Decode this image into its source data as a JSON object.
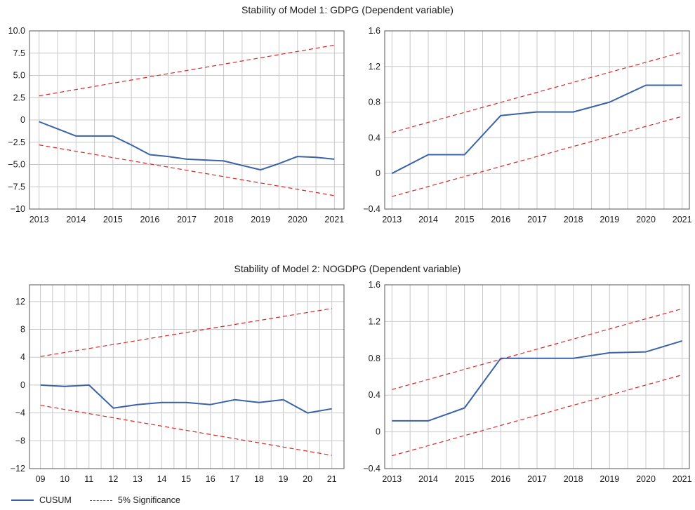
{
  "titles": {
    "model1": "Stability of Model 1: GDPG (Dependent variable)",
    "model2": "Stability of Model 2: NOGDPG (Dependent variable)"
  },
  "legend": {
    "cusum": "CUSUM",
    "significance": "5% Significance"
  },
  "colors": {
    "cusum": "#3a62a8",
    "significance": "#d62828",
    "grid": "#c8c8c8",
    "frame": "#555555"
  },
  "chart_data": [
    {
      "type": "line",
      "chart_id": "model1-cusum",
      "xlim": [
        2012.74,
        2021.26
      ],
      "xticks": [
        2013,
        2014,
        2015,
        2016,
        2017,
        2018,
        2019,
        2020,
        2021
      ],
      "xticklabels": [
        "2013",
        "2014",
        "2015",
        "2016",
        "2017",
        "2018",
        "2019",
        "2020",
        "2021"
      ],
      "ylim": [
        -10,
        10
      ],
      "yticks": [
        -10,
        -7.5,
        -5,
        -2.5,
        0,
        2.5,
        5,
        7.5,
        10
      ],
      "yticklabels": [
        "−10",
        "−7.5",
        "−5.0",
        "−2.5",
        "0",
        "2.5",
        "5.0",
        "7.5",
        "10.0"
      ],
      "grid": true,
      "series": [
        {
          "name": "CUSUM",
          "style": "solid",
          "x": [
            2013.0,
            2013.5,
            2014.0,
            2014.5,
            2015.0,
            2015.5,
            2016.0,
            2016.5,
            2017.0,
            2017.5,
            2018.0,
            2018.5,
            2019.0,
            2019.5,
            2020.0,
            2020.5,
            2021.0
          ],
          "y": [
            -0.2,
            -1.0,
            -1.8,
            -1.8,
            -1.8,
            -2.8,
            -3.9,
            -4.1,
            -4.4,
            -4.5,
            -4.6,
            -5.1,
            -5.6,
            -4.9,
            -4.1,
            -4.2,
            -4.4
          ]
        },
        {
          "name": "5% Significance",
          "style": "dashed",
          "x": [
            2013.0,
            2021.0
          ],
          "y": [
            2.7,
            8.4
          ]
        },
        {
          "name": "5% Significance",
          "style": "dashed",
          "x": [
            2013.0,
            2021.0
          ],
          "y": [
            -2.8,
            -8.5
          ]
        }
      ]
    },
    {
      "type": "line",
      "chart_id": "model1-cusumsq",
      "xlim": [
        2012.8,
        2021.2
      ],
      "xticks": [
        2013,
        2014,
        2015,
        2016,
        2017,
        2018,
        2019,
        2020,
        2021
      ],
      "xticklabels": [
        "2013",
        "2014",
        "2015",
        "2016",
        "2017",
        "2018",
        "2019",
        "2020",
        "2021"
      ],
      "ylim": [
        -0.4,
        1.6
      ],
      "yticks": [
        -0.4,
        0,
        0.4,
        0.8,
        1.2,
        1.6
      ],
      "yticklabels": [
        "−0.4",
        "0",
        "0.4",
        "0.8",
        "1.2",
        "1.6"
      ],
      "grid": true,
      "series": [
        {
          "name": "CUSUM",
          "style": "solid",
          "x": [
            2013.0,
            2014.0,
            2015.0,
            2016.0,
            2017.0,
            2018.0,
            2019.0,
            2020.0,
            2020.4,
            2021.0
          ],
          "y": [
            0.0,
            0.21,
            0.21,
            0.65,
            0.69,
            0.69,
            0.8,
            0.99,
            0.99,
            0.99
          ]
        },
        {
          "name": "5% Significance",
          "style": "dashed",
          "x": [
            2013.0,
            2021.0
          ],
          "y": [
            0.46,
            1.36
          ]
        },
        {
          "name": "5% Significance",
          "style": "dashed",
          "x": [
            2013.0,
            2021.0
          ],
          "y": [
            -0.26,
            0.64
          ]
        }
      ]
    },
    {
      "type": "line",
      "chart_id": "model2-cusum",
      "xlim": [
        8.55,
        21.5
      ],
      "xticks": [
        9,
        10,
        11,
        12,
        13,
        14,
        15,
        16,
        17,
        18,
        19,
        20,
        21
      ],
      "xticklabels": [
        "09",
        "10",
        "11",
        "12",
        "13",
        "14",
        "15",
        "16",
        "17",
        "18",
        "19",
        "20",
        "21"
      ],
      "ylim": [
        -12,
        14.4
      ],
      "yticks": [
        -12,
        -8,
        -4,
        0,
        4,
        8,
        12
      ],
      "yticklabels": [
        "−12",
        "−8",
        "−4",
        "0",
        "4",
        "8",
        "12"
      ],
      "grid": true,
      "series": [
        {
          "name": "CUSUM",
          "style": "solid",
          "x": [
            9,
            10,
            11,
            12,
            13,
            14,
            15,
            16,
            17,
            18,
            19,
            20,
            21
          ],
          "y": [
            0.0,
            -0.2,
            0.0,
            -3.3,
            -2.8,
            -2.5,
            -2.5,
            -2.8,
            -2.1,
            -2.5,
            -2.1,
            -4.0,
            -3.4
          ]
        },
        {
          "name": "5% Significance",
          "style": "dashed",
          "x": [
            9,
            21
          ],
          "y": [
            4.1,
            11.0
          ]
        },
        {
          "name": "5% Significance",
          "style": "dashed",
          "x": [
            9,
            21
          ],
          "y": [
            -2.9,
            -10.1
          ]
        }
      ]
    },
    {
      "type": "line",
      "chart_id": "model2-cusumsq",
      "xlim": [
        2012.8,
        2021.2
      ],
      "xticks": [
        2013,
        2014,
        2015,
        2016,
        2017,
        2018,
        2019,
        2020,
        2021
      ],
      "xticklabels": [
        "2013",
        "2014",
        "2015",
        "2016",
        "2017",
        "2018",
        "2019",
        "2020",
        "2021"
      ],
      "ylim": [
        -0.4,
        1.6
      ],
      "yticks": [
        -0.4,
        0,
        0.4,
        0.8,
        1.2,
        1.6
      ],
      "yticklabels": [
        "−0.4",
        "0",
        "0.4",
        "0.8",
        "1.2",
        "1.6"
      ],
      "grid": true,
      "series": [
        {
          "name": "CUSUM",
          "style": "solid",
          "x": [
            2013.0,
            2014.0,
            2015.0,
            2016.0,
            2017.0,
            2018.0,
            2019.0,
            2020.0,
            2021.0
          ],
          "y": [
            0.12,
            0.12,
            0.26,
            0.8,
            0.8,
            0.8,
            0.86,
            0.87,
            0.99
          ]
        },
        {
          "name": "5% Significance",
          "style": "dashed",
          "x": [
            2013.0,
            2021.0
          ],
          "y": [
            0.46,
            1.34
          ]
        },
        {
          "name": "5% Significance",
          "style": "dashed",
          "x": [
            2013.0,
            2021.0
          ],
          "y": [
            -0.26,
            0.62
          ]
        }
      ]
    }
  ]
}
